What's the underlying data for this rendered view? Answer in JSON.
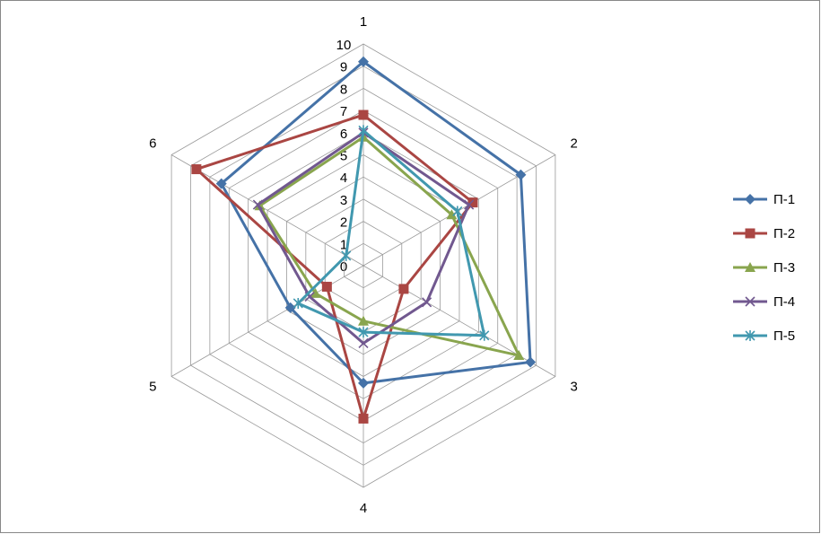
{
  "chart_data": {
    "type": "radar",
    "categories": [
      "1",
      "2",
      "3",
      "4",
      "5",
      "6"
    ],
    "ylim": [
      0,
      10
    ],
    "yticks": [
      0,
      1,
      2,
      3,
      4,
      5,
      6,
      7,
      8,
      9,
      10
    ],
    "grid": true,
    "legend": "right",
    "series": [
      {
        "name": "П-1",
        "color": "#4572a7",
        "marker": "diamond",
        "values": [
          9.2,
          8.2,
          8.7,
          5.3,
          3.8,
          7.4
        ]
      },
      {
        "name": "П-2",
        "color": "#aa4643",
        "marker": "square",
        "values": [
          6.8,
          5.7,
          2.1,
          6.9,
          1.9,
          8.7
        ]
      },
      {
        "name": "П-3",
        "color": "#89a54e",
        "marker": "triangle",
        "values": [
          5.8,
          4.6,
          8.1,
          2.5,
          2.5,
          5.4
        ]
      },
      {
        "name": "П-4",
        "color": "#71588f",
        "marker": "x",
        "values": [
          6.0,
          5.5,
          3.3,
          3.5,
          2.8,
          5.5
        ]
      },
      {
        "name": "П-5",
        "color": "#4198af",
        "marker": "star",
        "values": [
          6.1,
          4.9,
          6.3,
          3.0,
          3.4,
          0.9
        ]
      }
    ]
  }
}
